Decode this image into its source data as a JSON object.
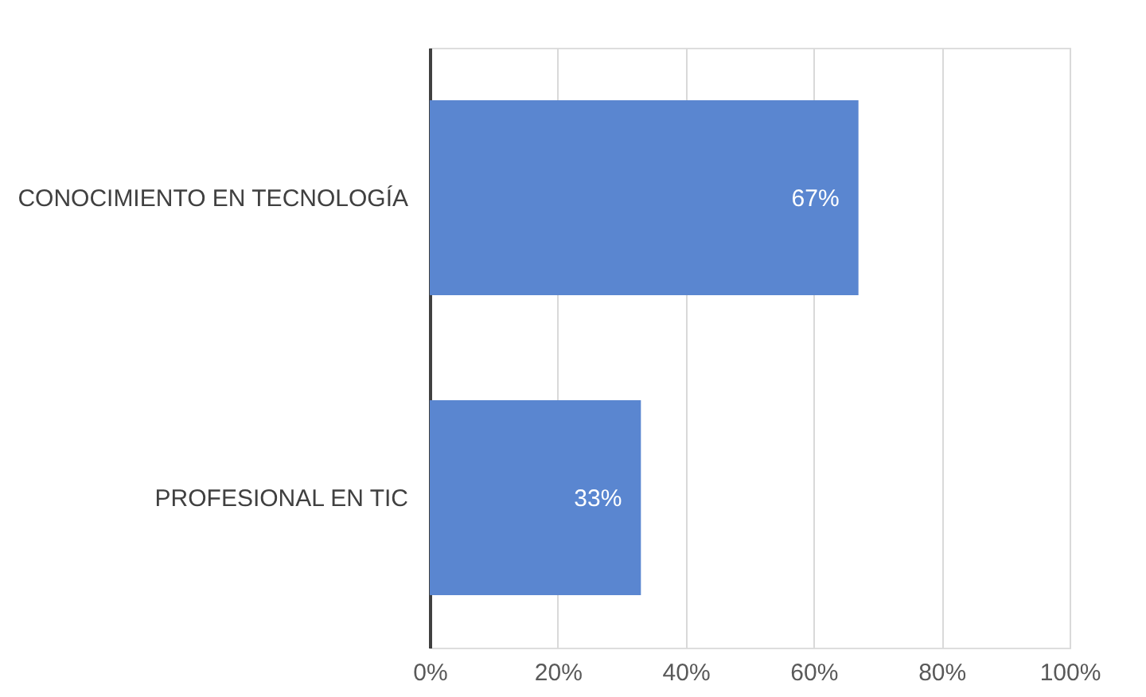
{
  "chart_data": {
    "type": "bar",
    "orientation": "horizontal",
    "categories": [
      "CONOCIMIENTO EN TECNOLOGÍA",
      "PROFESIONAL EN TIC"
    ],
    "series": [
      {
        "color": "#5a86d0",
        "values": [
          67,
          33
        ]
      }
    ],
    "value_labels": [
      "67%",
      "33%"
    ],
    "xlim": [
      0,
      100
    ],
    "xticks": [
      {
        "value": 0,
        "label": "0%"
      },
      {
        "value": 20,
        "label": "20%"
      },
      {
        "value": 40,
        "label": "40%"
      },
      {
        "value": 60,
        "label": "60%"
      },
      {
        "value": 80,
        "label": "80%"
      },
      {
        "value": 100,
        "label": "100%"
      }
    ],
    "grid": "x"
  }
}
